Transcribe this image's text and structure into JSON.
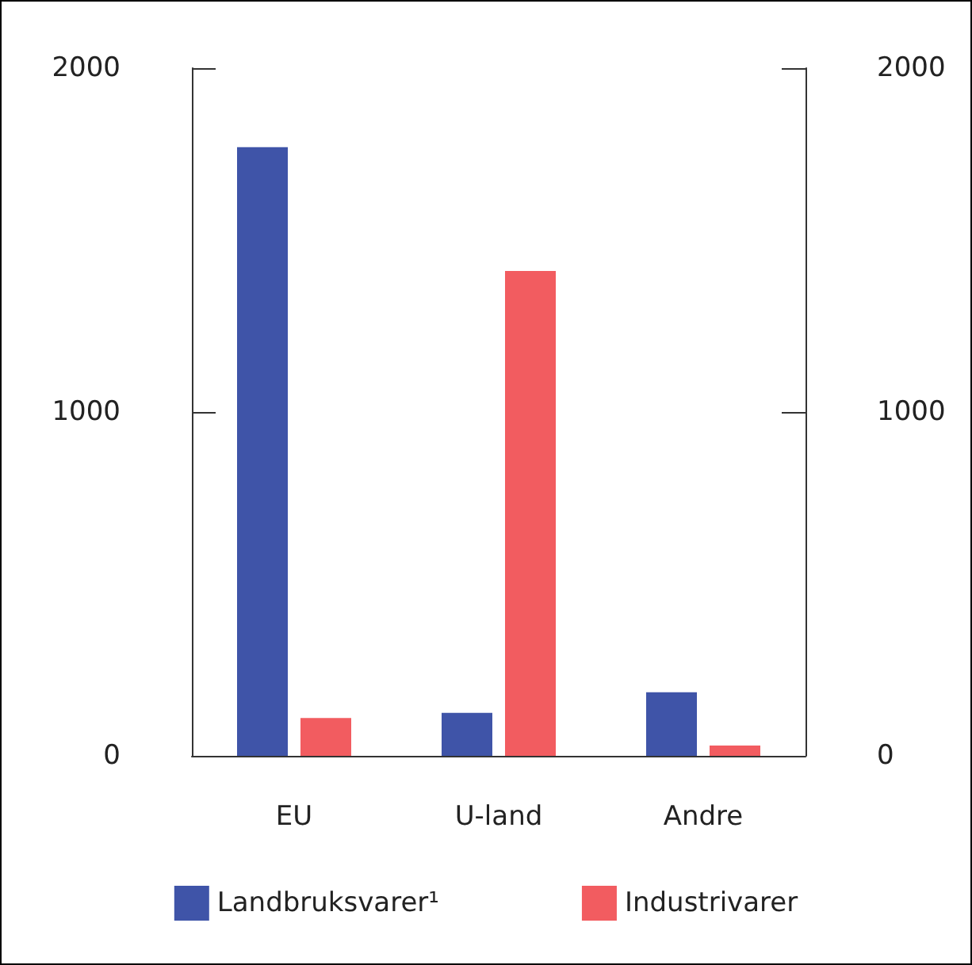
{
  "chart_data": {
    "type": "bar",
    "categories": [
      "EU",
      "U-land",
      "Andre"
    ],
    "series": [
      {
        "name": "Landbruksvarer¹",
        "color": "#3f54a8",
        "values": [
          1770,
          125,
          185
        ]
      },
      {
        "name": "Industrivarer",
        "color": "#f25c60",
        "values": [
          110,
          1410,
          30
        ]
      }
    ],
    "ylim": [
      0,
      2000
    ],
    "yticks": [
      0,
      1000,
      2000
    ],
    "y2lim": [
      0,
      2000
    ],
    "y2ticks": [
      0,
      1000,
      2000
    ],
    "grid": false,
    "legend": "bottom"
  }
}
